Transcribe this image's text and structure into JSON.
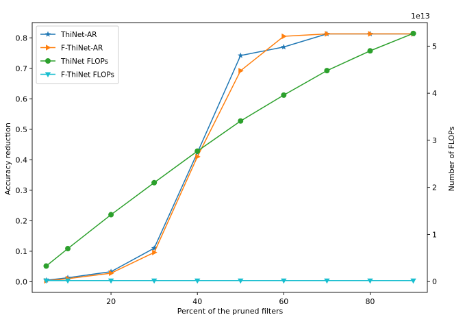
{
  "chart_data": {
    "type": "line",
    "xlabel": "Percent of the pruned filters",
    "ylabel": "Accuracy reduction",
    "y2label": "Number of FLOPs",
    "y2_offset_text": "1e13",
    "xlim": [
      1.75,
      93.25
    ],
    "ylim": [
      -0.035,
      0.85
    ],
    "y2lim": [
      -0.23,
      5.5
    ],
    "x_ticks": [
      20,
      40,
      60,
      80
    ],
    "y_ticks": [
      0.0,
      0.1,
      0.2,
      0.3,
      0.4,
      0.5,
      0.6,
      0.7,
      0.8
    ],
    "y2_ticks": [
      0,
      1,
      2,
      3,
      4,
      5
    ],
    "grid": false,
    "legend_position": "upper-left",
    "series": [
      {
        "name": "ThiNet-AR",
        "axis": "left",
        "color": "#1f77b4",
        "marker": "star",
        "x": [
          5,
          10,
          20,
          30,
          40,
          50,
          60,
          70,
          80,
          90
        ],
        "values": [
          0.005,
          0.013,
          0.033,
          0.11,
          0.423,
          0.742,
          0.77,
          0.813,
          0.813,
          0.813
        ]
      },
      {
        "name": "F-ThiNet-AR",
        "axis": "left",
        "color": "#ff7f0e",
        "marker": "triangle-right",
        "x": [
          5,
          10,
          20,
          30,
          40,
          50,
          60,
          70,
          80,
          90
        ],
        "values": [
          0.003,
          0.01,
          0.028,
          0.096,
          0.41,
          0.692,
          0.805,
          0.813,
          0.813,
          0.813
        ]
      },
      {
        "name": "ThiNet FLOPs",
        "axis": "right",
        "color": "#2ca02c",
        "marker": "circle",
        "x": [
          5,
          10,
          20,
          30,
          40,
          50,
          60,
          70,
          80,
          90
        ],
        "values": [
          0.33,
          0.7,
          1.42,
          2.1,
          2.77,
          3.41,
          3.96,
          4.48,
          4.9,
          5.27
        ]
      },
      {
        "name": "F-ThiNet FLOPs",
        "axis": "right",
        "color": "#17becf",
        "marker": "triangle-down",
        "x": [
          5,
          10,
          20,
          30,
          40,
          50,
          60,
          70,
          80,
          90
        ],
        "values": [
          0.02,
          0.02,
          0.02,
          0.02,
          0.02,
          0.02,
          0.02,
          0.02,
          0.02,
          0.02
        ]
      }
    ]
  }
}
